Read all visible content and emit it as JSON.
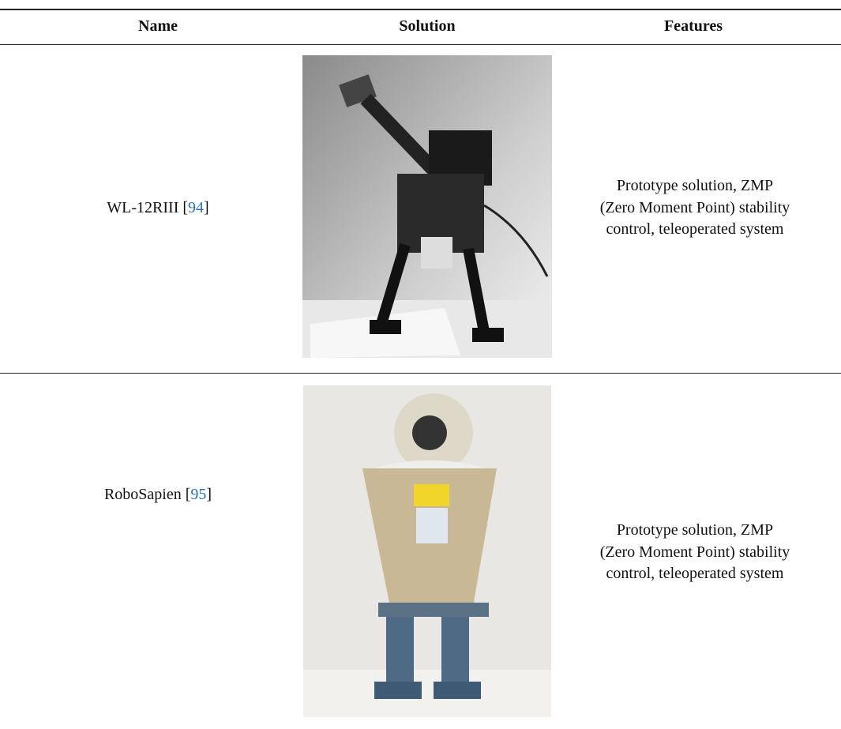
{
  "table": {
    "header": [
      "Name",
      "Solution",
      "Features"
    ],
    "rows": [
      {
        "name": "WL-12RIII",
        "cite_open": "[",
        "ref": "94",
        "cite_close": "]",
        "features": [
          "Prototype solution, ZMP",
          "(Zero Moment Point) stability",
          "control, teleoperated system"
        ]
      },
      {
        "name": "RoboSapien",
        "cite_open": "[",
        "ref": "95",
        "cite_close": "]",
        "features": [
          "Prototype solution, ZMP",
          "(Zero Moment Point) stability",
          "control, teleoperated system"
        ]
      }
    ]
  }
}
